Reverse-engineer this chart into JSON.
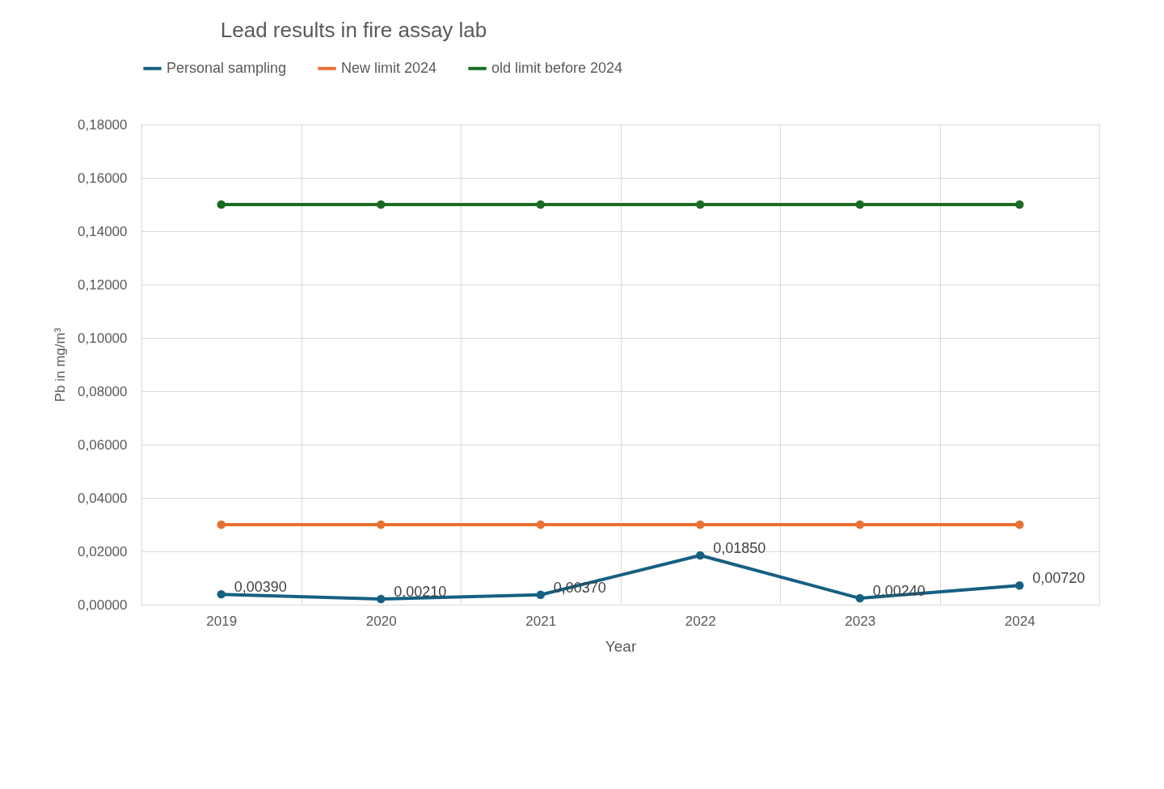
{
  "chart_data": {
    "type": "line",
    "title": "Lead results in fire assay lab",
    "xlabel": "Year",
    "ylabel": "Pb in mg/m³",
    "categories": [
      "2019",
      "2020",
      "2021",
      "2022",
      "2023",
      "2024"
    ],
    "series": [
      {
        "name": "Personal sampling",
        "color": "#156082",
        "values": [
          0.0039,
          0.0021,
          0.0037,
          0.0185,
          0.0024,
          0.0072
        ],
        "value_labels": [
          "0,00390",
          "0,00210",
          "0,00370",
          "0,01850",
          "0,00240",
          "0,00720"
        ]
      },
      {
        "name": "New limit 2024",
        "color": "#e97132",
        "values": [
          0.03,
          0.03,
          0.03,
          0.03,
          0.03,
          0.03
        ]
      },
      {
        "name": "old limit before 2024",
        "color": "#196b24",
        "values": [
          0.15,
          0.15,
          0.15,
          0.15,
          0.15,
          0.15
        ]
      }
    ],
    "ylim": [
      0,
      0.18
    ],
    "yticks": [
      {
        "value": 0,
        "label": "0,00000"
      },
      {
        "value": 0.02,
        "label": "0,02000"
      },
      {
        "value": 0.04,
        "label": "0,04000"
      },
      {
        "value": 0.06,
        "label": "0,06000"
      },
      {
        "value": 0.08,
        "label": "0,08000"
      },
      {
        "value": 0.1,
        "label": "0,10000"
      },
      {
        "value": 0.12,
        "label": "0,12000"
      },
      {
        "value": 0.14,
        "label": "0,14000"
      },
      {
        "value": 0.16,
        "label": "0,16000"
      },
      {
        "value": 0.18,
        "label": "0,18000"
      }
    ],
    "grid": true,
    "legend": "top",
    "marker": "circle",
    "line_style": "solid"
  }
}
